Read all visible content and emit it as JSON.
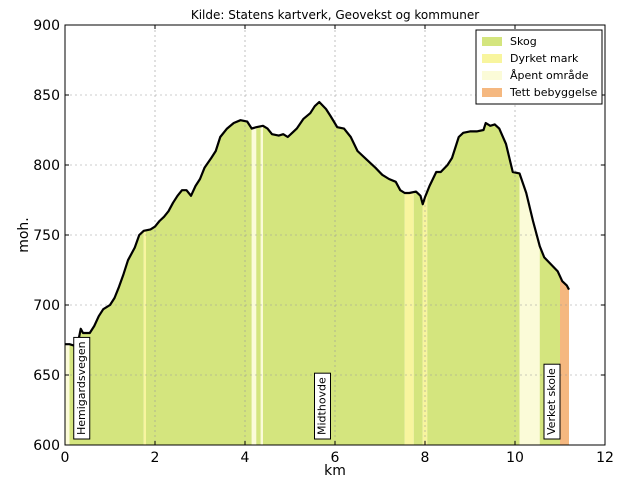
{
  "chart_data": {
    "type": "area",
    "title": "Kilde: Statens kartverk, Geovekst og kommuner",
    "xlabel": "km",
    "ylabel": "moh.",
    "xlim": [
      0,
      12
    ],
    "ylim": [
      600,
      900
    ],
    "x_ticks": [
      0,
      2,
      4,
      6,
      8,
      10,
      12
    ],
    "y_ticks": [
      600,
      650,
      700,
      750,
      800,
      850,
      900
    ],
    "grid": true,
    "legend_position": "top-right",
    "series": [
      {
        "name": "Skog",
        "color": "#d4e57e"
      },
      {
        "name": "Dyrket mark",
        "color": "#f8f59e"
      },
      {
        "name": "Åpent område",
        "color": "#fbfbd8"
      },
      {
        "name": "Tett bebyggelse",
        "color": "#f5b880"
      }
    ],
    "profile": [
      [
        0,
        672
      ],
      [
        0.1,
        672
      ],
      [
        0.2,
        671
      ],
      [
        0.3,
        675
      ],
      [
        0.35,
        683
      ],
      [
        0.4,
        680
      ],
      [
        0.55,
        680
      ],
      [
        0.65,
        685
      ],
      [
        0.75,
        692
      ],
      [
        0.85,
        697
      ],
      [
        1.0,
        700
      ],
      [
        1.1,
        705
      ],
      [
        1.2,
        713
      ],
      [
        1.3,
        722
      ],
      [
        1.4,
        732
      ],
      [
        1.55,
        741
      ],
      [
        1.65,
        750
      ],
      [
        1.75,
        753
      ],
      [
        1.9,
        754
      ],
      [
        2.0,
        756
      ],
      [
        2.1,
        760
      ],
      [
        2.2,
        763
      ],
      [
        2.3,
        767
      ],
      [
        2.4,
        773
      ],
      [
        2.5,
        778
      ],
      [
        2.6,
        782
      ],
      [
        2.7,
        782
      ],
      [
        2.8,
        778
      ],
      [
        2.9,
        785
      ],
      [
        3.0,
        790
      ],
      [
        3.1,
        798
      ],
      [
        3.25,
        805
      ],
      [
        3.35,
        810
      ],
      [
        3.45,
        820
      ],
      [
        3.6,
        826
      ],
      [
        3.75,
        830
      ],
      [
        3.9,
        832
      ],
      [
        4.05,
        831
      ],
      [
        4.15,
        826
      ],
      [
        4.25,
        827
      ],
      [
        4.4,
        828
      ],
      [
        4.5,
        826
      ],
      [
        4.6,
        822
      ],
      [
        4.75,
        821
      ],
      [
        4.85,
        822
      ],
      [
        4.95,
        820
      ],
      [
        5.05,
        823
      ],
      [
        5.15,
        826
      ],
      [
        5.3,
        833
      ],
      [
        5.45,
        837
      ],
      [
        5.55,
        842
      ],
      [
        5.65,
        845
      ],
      [
        5.8,
        840
      ],
      [
        5.9,
        835
      ],
      [
        6.05,
        827
      ],
      [
        6.2,
        826
      ],
      [
        6.35,
        820
      ],
      [
        6.5,
        810
      ],
      [
        6.7,
        804
      ],
      [
        6.9,
        798
      ],
      [
        7.05,
        793
      ],
      [
        7.2,
        790
      ],
      [
        7.35,
        788
      ],
      [
        7.45,
        782
      ],
      [
        7.55,
        780
      ],
      [
        7.65,
        780
      ],
      [
        7.8,
        781
      ],
      [
        7.9,
        778
      ],
      [
        7.95,
        772
      ],
      [
        8.0,
        777
      ],
      [
        8.1,
        785
      ],
      [
        8.25,
        795
      ],
      [
        8.35,
        795
      ],
      [
        8.5,
        800
      ],
      [
        8.6,
        805
      ],
      [
        8.75,
        820
      ],
      [
        8.85,
        823
      ],
      [
        9.0,
        824
      ],
      [
        9.15,
        824
      ],
      [
        9.3,
        825
      ],
      [
        9.35,
        830
      ],
      [
        9.45,
        828
      ],
      [
        9.55,
        829
      ],
      [
        9.65,
        826
      ],
      [
        9.8,
        815
      ],
      [
        9.95,
        795
      ],
      [
        10.1,
        794
      ],
      [
        10.25,
        780
      ],
      [
        10.4,
        760
      ],
      [
        10.55,
        742
      ],
      [
        10.65,
        734
      ],
      [
        10.8,
        729
      ],
      [
        10.95,
        724
      ],
      [
        11.05,
        717
      ],
      [
        11.15,
        714
      ],
      [
        11.2,
        711
      ]
    ],
    "land_cover": [
      {
        "from": 0.0,
        "to": 0.1,
        "type": "Åpent område"
      },
      {
        "from": 0.1,
        "to": 1.75,
        "type": "Skog"
      },
      {
        "from": 1.75,
        "to": 1.8,
        "type": "Dyrket mark"
      },
      {
        "from": 1.8,
        "to": 4.15,
        "type": "Skog"
      },
      {
        "from": 4.15,
        "to": 4.25,
        "type": "Åpent område"
      },
      {
        "from": 4.25,
        "to": 4.35,
        "type": "Skog"
      },
      {
        "from": 4.35,
        "to": 4.4,
        "type": "Åpent område"
      },
      {
        "from": 4.4,
        "to": 7.55,
        "type": "Skog"
      },
      {
        "from": 7.55,
        "to": 7.75,
        "type": "Dyrket mark"
      },
      {
        "from": 7.75,
        "to": 7.95,
        "type": "Skog"
      },
      {
        "from": 7.95,
        "to": 8.05,
        "type": "Dyrket mark"
      },
      {
        "from": 8.05,
        "to": 10.1,
        "type": "Skog"
      },
      {
        "from": 10.1,
        "to": 10.55,
        "type": "Åpent område"
      },
      {
        "from": 10.55,
        "to": 11.0,
        "type": "Skog"
      },
      {
        "from": 11.0,
        "to": 11.2,
        "type": "Tett bebyggelse"
      }
    ],
    "place_labels": [
      {
        "text": "Hemigardsvegen",
        "x": 0.35
      },
      {
        "text": "Midthovde",
        "x": 5.7
      },
      {
        "text": "Verket skole",
        "x": 10.8
      }
    ]
  }
}
